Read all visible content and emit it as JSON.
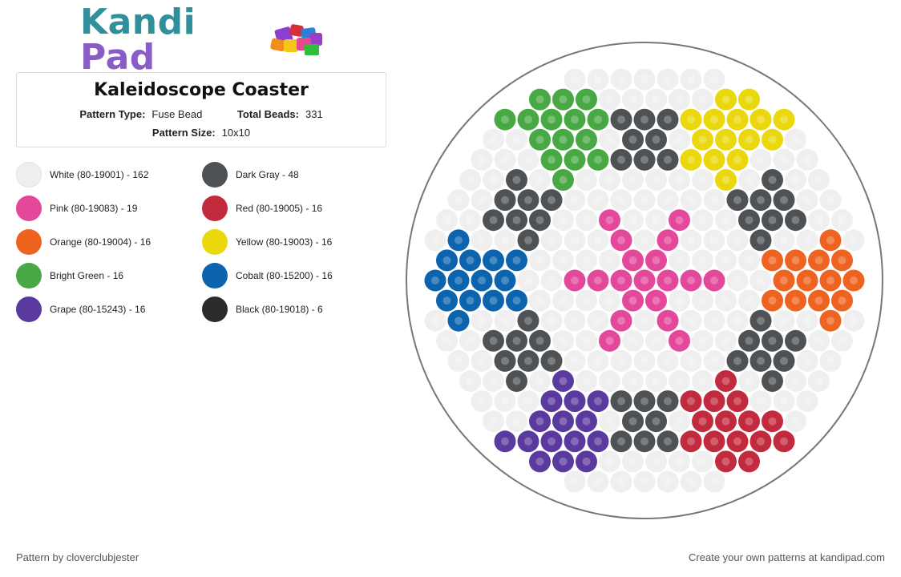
{
  "brand": {
    "logo_text_kandi": "Kandi",
    "logo_text_pad": "Pad",
    "cube_icon": "bead-cubes-icon"
  },
  "pattern": {
    "title": "Kaleidoscope Coaster",
    "type_label": "Pattern Type:",
    "type_value": "Fuse Bead",
    "beads_label": "Total Beads:",
    "beads_value": "331",
    "size_label": "Pattern Size:",
    "size_value": "10x10"
  },
  "legend": [
    {
      "label": "White (80-19001) - 162",
      "color": "#efefef"
    },
    {
      "label": "Dark Gray - 48",
      "color": "#4f5255"
    },
    {
      "label": "Pink (80-19083) - 19",
      "color": "#e3489a"
    },
    {
      "label": "Red (80-19005) - 16",
      "color": "#c22a3e"
    },
    {
      "label": "Orange (80-19004) - 16",
      "color": "#ef6321"
    },
    {
      "label": "Yellow (80-19003) - 16",
      "color": "#ead80c"
    },
    {
      "label": "Bright Green - 16",
      "color": "#48a944"
    },
    {
      "label": "Cobalt (80-15200) - 16",
      "color": "#0b64ad"
    },
    {
      "label": "Grape (80-15243) - 16",
      "color": "#5a3a9e"
    },
    {
      "label": "Black (80-19018) - 6",
      "color": "#2b2c2e"
    }
  ],
  "footer": {
    "credit": "Pattern by cloverclubjester",
    "promo": "Create your own patterns at kandipad.com"
  },
  "colors": {
    "board_border": "#777777",
    "bead_white": "#efefef",
    "bead_dark_gray": "#4f5255",
    "bead_pink": "#e3489a",
    "bead_red": "#c22a3e",
    "bead_orange": "#ef6321",
    "bead_yellow": "#ead80c",
    "bead_green": "#48a944",
    "bead_cobalt": "#0b64ad",
    "bead_grape": "#5a3a9e",
    "bead_black": "#2b2c2e"
  }
}
